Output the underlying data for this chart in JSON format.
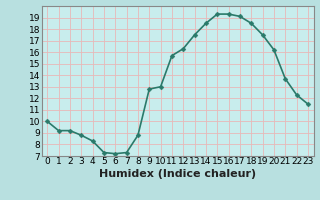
{
  "xlabel": "Humidex (Indice chaleur)",
  "x": [
    0,
    1,
    2,
    3,
    4,
    5,
    6,
    7,
    8,
    9,
    10,
    11,
    12,
    13,
    14,
    15,
    16,
    17,
    18,
    19,
    20,
    21,
    22,
    23
  ],
  "y": [
    10.0,
    9.2,
    9.2,
    8.8,
    8.3,
    7.3,
    7.2,
    7.3,
    8.8,
    12.8,
    13.0,
    15.7,
    16.3,
    17.5,
    18.5,
    19.3,
    19.3,
    19.1,
    18.5,
    17.5,
    16.2,
    13.7,
    12.3,
    11.5
  ],
  "line_color": "#2a7a6a",
  "marker": "D",
  "marker_size": 2.5,
  "bg_color": "#b8e0e0",
  "plot_bg_color": "#c8eded",
  "grid_color": "#e8b8b8",
  "ylim": [
    7,
    20
  ],
  "xlim": [
    -0.5,
    23.5
  ],
  "yticks": [
    7,
    8,
    9,
    10,
    11,
    12,
    13,
    14,
    15,
    16,
    17,
    18,
    19
  ],
  "xticks": [
    0,
    1,
    2,
    3,
    4,
    5,
    6,
    7,
    8,
    9,
    10,
    11,
    12,
    13,
    14,
    15,
    16,
    17,
    18,
    19,
    20,
    21,
    22,
    23
  ],
  "xtick_labels": [
    "0",
    "1",
    "2",
    "3",
    "4",
    "5",
    "6",
    "7",
    "8",
    "9",
    "10",
    "11",
    "12",
    "13",
    "14",
    "15",
    "16",
    "17",
    "18",
    "19",
    "20",
    "21",
    "22",
    "23"
  ],
  "xlabel_fontsize": 8,
  "tick_fontsize": 6.5,
  "line_width": 1.2,
  "spine_color": "#888888"
}
